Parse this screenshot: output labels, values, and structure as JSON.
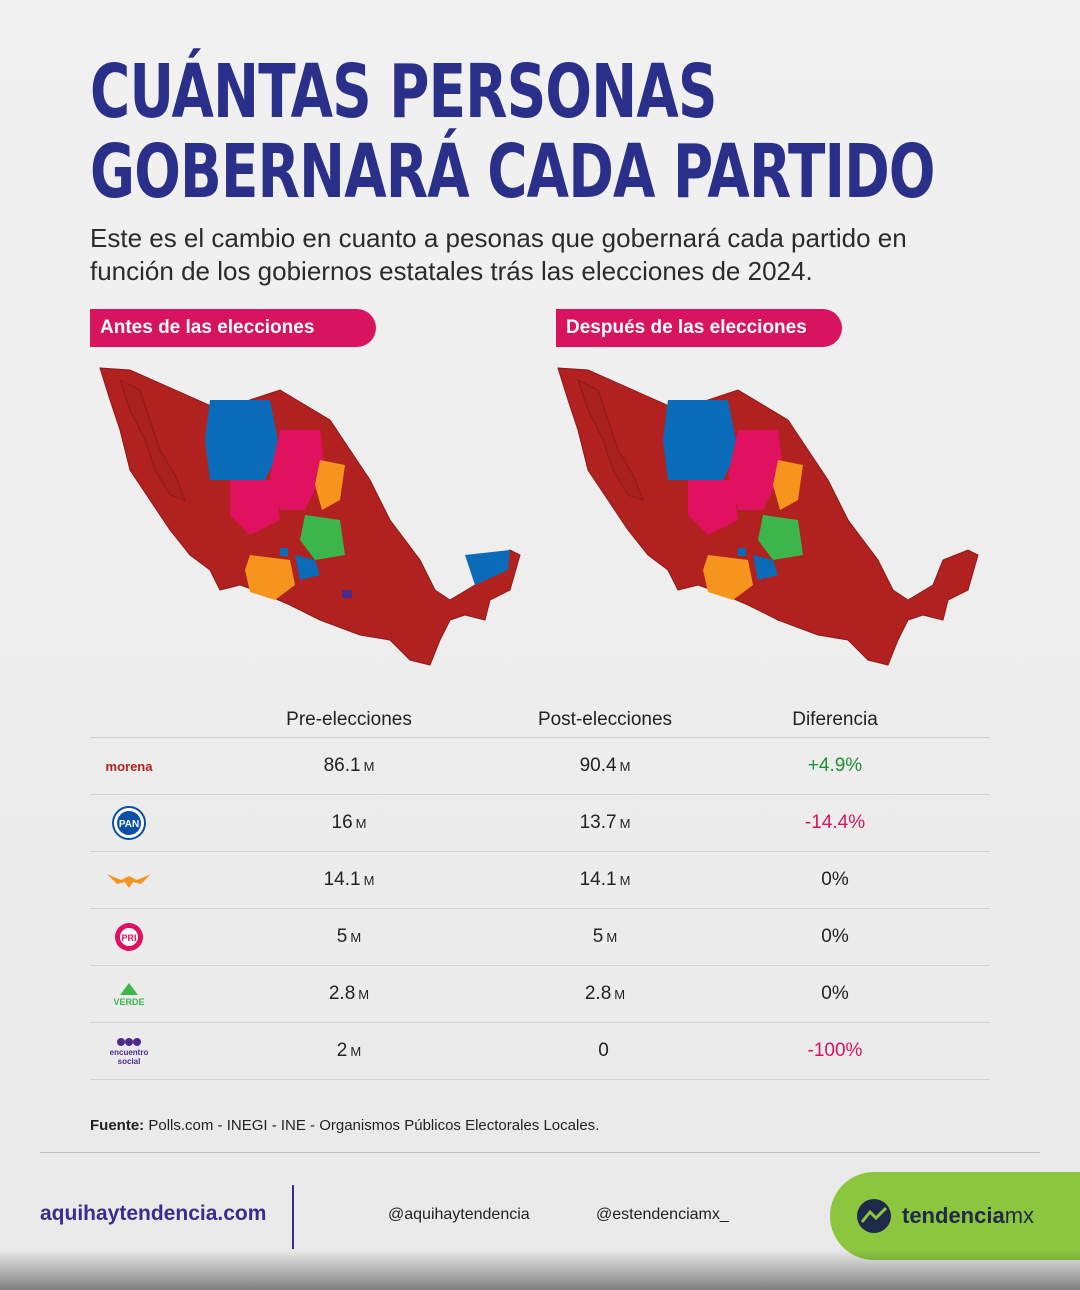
{
  "title": "CUÁNTAS PERSONAS GOBERNARÁ CADA PARTIDO",
  "subtitle": "Este es el cambio en cuanto a pesonas que gobernará cada partido en función de los gobiernos estatales trás las elecciones de 2024.",
  "tags": {
    "before": "Antes de las elecciones",
    "after": "Después de las elecciones"
  },
  "colors": {
    "morena": "#b0211f",
    "pan": "#0a6cb8",
    "mc": "#f7941d",
    "pri": "#e0115f",
    "pvem": "#3cb54a",
    "pes": "#4b2a8c",
    "accent": "#d9145f",
    "title": "#2a2f8a"
  },
  "table": {
    "headers": [
      "Pre-elecciones",
      "Post-elecciones",
      "Diferencia"
    ],
    "rows": [
      {
        "party": "morena",
        "logo_text": "morena",
        "pre": "86.1",
        "pre_unit": "M",
        "post": "90.4",
        "post_unit": "M",
        "diff": "+4.9%",
        "trend": "pos"
      },
      {
        "party": "pan",
        "logo_text": "PAN",
        "pre": "16",
        "pre_unit": "M",
        "post": "13.7",
        "post_unit": "M",
        "diff": "-14.4%",
        "trend": "neg"
      },
      {
        "party": "mc",
        "logo_text": "",
        "pre": "14.1",
        "pre_unit": "M",
        "post": "14.1",
        "post_unit": "M",
        "diff": "0%",
        "trend": "zero"
      },
      {
        "party": "pri",
        "logo_text": "PRI",
        "pre": "5",
        "pre_unit": "M",
        "post": "5",
        "post_unit": "M",
        "diff": "0%",
        "trend": "zero"
      },
      {
        "party": "pvem",
        "logo_text": "VERDE",
        "pre": "2.8",
        "pre_unit": "M",
        "post": "2.8",
        "post_unit": "M",
        "diff": "0%",
        "trend": "zero"
      },
      {
        "party": "pes",
        "logo_text": "encuentro social",
        "pre": "2",
        "pre_unit": "M",
        "post": "0",
        "post_unit": "",
        "diff": "-100%",
        "trend": "neg"
      }
    ]
  },
  "source_label": "Fuente:",
  "source": "Polls.com - INEGI - INE - Organismos Públicos Electorales Locales.",
  "footer": {
    "site": "aquihaytendencia.com",
    "handle1": "@aquihaytendencia",
    "handle2": "@estendenciamx_",
    "brand_main": "tendencia",
    "brand_suffix": "mx"
  }
}
